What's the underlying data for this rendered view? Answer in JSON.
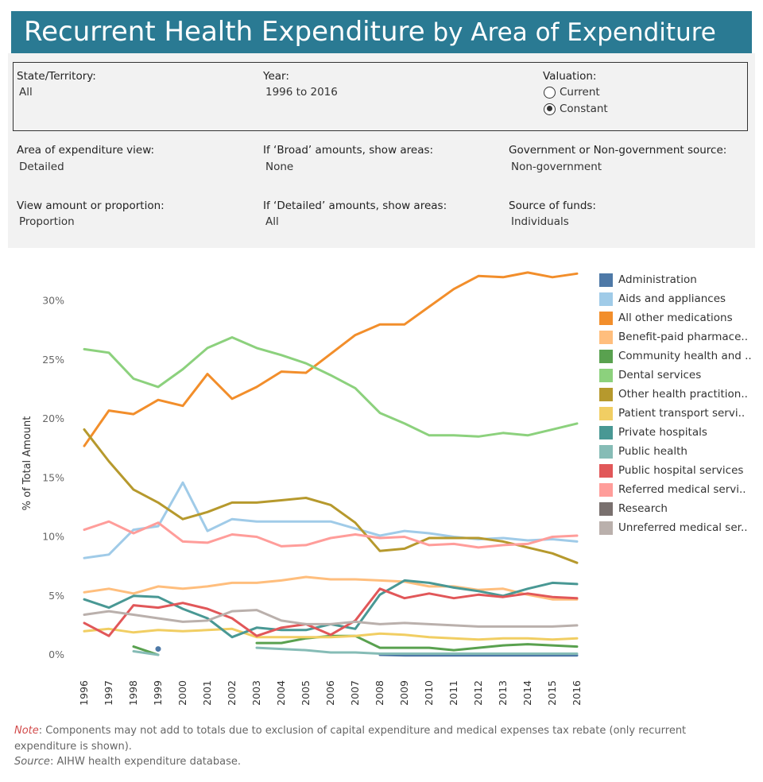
{
  "title": {
    "main": "Recurrent Health Expenditure",
    "sub": " by Area of Expenditure"
  },
  "filters": {
    "state_label": "State/Territory:",
    "state_value": "All",
    "year_label": "Year:",
    "year_value": "1996 to 2016",
    "valuation_label": "Valuation:",
    "valuation_options": [
      "Current",
      "Constant"
    ],
    "valuation_selected": "Constant",
    "area_view_label": "Area of expenditure view:",
    "area_view_value": "Detailed",
    "broad_label": "If ‘Broad’ amounts, show areas:",
    "broad_value": "None",
    "gov_label": "Government or Non-government source:",
    "gov_value": "Non-government",
    "amount_label": "View amount or proportion:",
    "amount_value": "Proportion",
    "detailed_label": "If ‘Detailed’ amounts, show areas:",
    "detailed_value": "All",
    "source_funds_label": "Source of funds:",
    "source_funds_value": "Individuals"
  },
  "chart_data": {
    "type": "line",
    "ylabel": "% of Total Amount",
    "ylim": [
      0,
      33
    ],
    "yticks": [
      0,
      5,
      10,
      15,
      20,
      25,
      30
    ],
    "ytick_labels": [
      "0%",
      "5%",
      "10%",
      "15%",
      "20%",
      "25%",
      "30%"
    ],
    "x": [
      1996,
      1997,
      1998,
      1999,
      2000,
      2001,
      2002,
      2003,
      2004,
      2005,
      2006,
      2007,
      2008,
      2009,
      2010,
      2011,
      2012,
      2013,
      2014,
      2015,
      2016
    ],
    "legend_position": "right",
    "series": [
      {
        "name": "Administration",
        "color": "#4e79a7",
        "values": [
          null,
          null,
          null,
          0.5,
          null,
          null,
          null,
          null,
          null,
          null,
          null,
          null,
          0.0,
          -0.05,
          -0.05,
          -0.05,
          -0.05,
          -0.05,
          -0.05,
          -0.05,
          -0.05
        ]
      },
      {
        "name": "Aids and appliances",
        "color": "#a0cbe8",
        "values": [
          8.2,
          8.5,
          10.6,
          10.9,
          14.6,
          10.5,
          11.5,
          11.3,
          11.3,
          11.3,
          11.3,
          10.7,
          10.1,
          10.5,
          10.3,
          10.0,
          9.8,
          9.9,
          9.7,
          9.8,
          9.6
        ]
      },
      {
        "name": "All other medications",
        "color": "#f28e2b",
        "values": [
          17.7,
          20.7,
          20.4,
          21.6,
          21.1,
          23.8,
          21.7,
          22.7,
          24.0,
          23.9,
          25.5,
          27.1,
          28.0,
          28.0,
          29.5,
          31.0,
          32.1,
          32.0,
          32.4,
          32.0,
          32.3
        ]
      },
      {
        "name": "Benefit-paid pharmaceuticals",
        "color": "#ffbe7d",
        "values": [
          5.3,
          5.6,
          5.2,
          5.8,
          5.6,
          5.8,
          6.1,
          6.1,
          6.3,
          6.6,
          6.4,
          6.4,
          6.3,
          6.2,
          5.8,
          5.8,
          5.5,
          5.6,
          5.1,
          4.7,
          4.7
        ]
      },
      {
        "name": "Community health and other",
        "color": "#59a14f",
        "values": [
          null,
          null,
          0.7,
          0.0,
          null,
          null,
          null,
          1.0,
          1.0,
          1.4,
          1.6,
          1.6,
          0.6,
          0.6,
          0.6,
          0.4,
          0.6,
          0.8,
          0.9,
          0.8,
          0.7
        ]
      },
      {
        "name": "Dental services",
        "color": "#8cd17d",
        "values": [
          25.9,
          25.6,
          23.4,
          22.7,
          24.2,
          26.0,
          26.9,
          26.0,
          25.4,
          24.7,
          23.7,
          22.6,
          20.5,
          19.6,
          18.6,
          18.6,
          18.5,
          18.8,
          18.6,
          19.1,
          19.6
        ]
      },
      {
        "name": "Other health practitioners",
        "color": "#b6992d",
        "values": [
          19.1,
          16.4,
          14.0,
          12.9,
          11.5,
          12.1,
          12.9,
          12.9,
          13.1,
          13.3,
          12.7,
          11.2,
          8.8,
          9.0,
          9.9,
          9.9,
          9.9,
          9.6,
          9.1,
          8.6,
          7.8
        ]
      },
      {
        "name": "Patient transport services",
        "color": "#f1ce63",
        "values": [
          2.0,
          2.2,
          1.9,
          2.1,
          2.0,
          2.1,
          2.2,
          1.5,
          1.5,
          1.5,
          1.5,
          1.6,
          1.8,
          1.7,
          1.5,
          1.4,
          1.3,
          1.4,
          1.4,
          1.3,
          1.4
        ]
      },
      {
        "name": "Private hospitals",
        "color": "#499894",
        "values": [
          4.7,
          4.0,
          5.0,
          4.9,
          3.9,
          3.1,
          1.5,
          2.3,
          2.1,
          2.1,
          2.6,
          2.2,
          5.1,
          6.3,
          6.1,
          5.7,
          5.4,
          5.0,
          5.6,
          6.1,
          6.0
        ]
      },
      {
        "name": "Public health",
        "color": "#86bcb6",
        "values": [
          null,
          null,
          0.3,
          0.0,
          null,
          null,
          null,
          0.6,
          0.5,
          0.4,
          0.2,
          0.2,
          0.1,
          0.1,
          0.1,
          0.1,
          0.1,
          0.1,
          0.1,
          0.1,
          0.1
        ]
      },
      {
        "name": "Public hospital services",
        "color": "#e15759",
        "values": [
          2.7,
          1.6,
          4.2,
          4.0,
          4.4,
          3.9,
          3.1,
          1.6,
          2.3,
          2.6,
          1.7,
          2.9,
          5.6,
          4.8,
          5.2,
          4.8,
          5.1,
          4.9,
          5.2,
          4.9,
          4.8
        ]
      },
      {
        "name": "Referred medical services",
        "color": "#ff9d9a",
        "values": [
          10.6,
          11.3,
          10.3,
          11.2,
          9.6,
          9.5,
          10.2,
          10.0,
          9.2,
          9.3,
          9.9,
          10.2,
          9.9,
          10.0,
          9.3,
          9.4,
          9.1,
          9.3,
          9.4,
          10.0,
          10.1
        ]
      },
      {
        "name": "Research",
        "color": "#79706e",
        "values": [
          null,
          null,
          null,
          null,
          null,
          null,
          null,
          null,
          null,
          null,
          null,
          null,
          null,
          null,
          null,
          null,
          null,
          null,
          null,
          null,
          null
        ]
      },
      {
        "name": "Unreferred medical services",
        "color": "#bab0ac",
        "values": [
          3.4,
          3.7,
          3.4,
          3.1,
          2.8,
          2.9,
          3.7,
          3.8,
          2.9,
          2.6,
          2.6,
          2.8,
          2.6,
          2.7,
          2.6,
          2.5,
          2.4,
          2.4,
          2.4,
          2.4,
          2.5
        ]
      }
    ]
  },
  "legend_labels": [
    "Administration",
    "Aids and appliances",
    "All other medications",
    "Benefit-paid pharmace..",
    "Community health and ..",
    "Dental services",
    "Other health practition..",
    "Patient transport servi..",
    "Private hospitals",
    "Public health",
    "Public hospital services",
    "Referred medical servi..",
    "Research",
    "Unreferred medical ser.."
  ],
  "footer": {
    "note_label": "Note",
    "note_text": ": Components may not add to totals due to exclusion of capital expenditure and medical expenses tax rebate (only recurrent expenditure is shown).",
    "source_label": "Source",
    "source_text": ": AIHW health expenditure database."
  }
}
